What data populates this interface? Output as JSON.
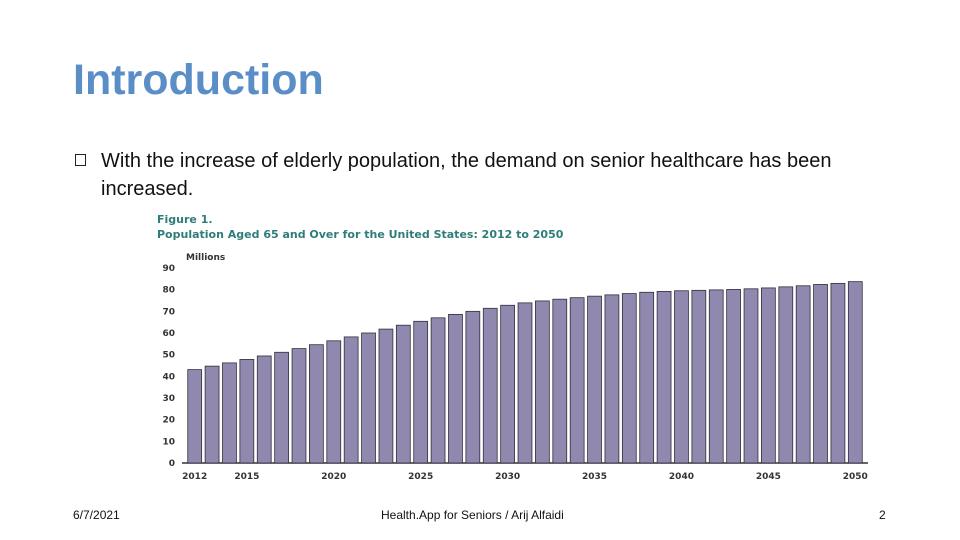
{
  "slide": {
    "title": "Introduction",
    "bullet": "With the increase of elderly population, the demand on senior healthcare has been increased."
  },
  "footer": {
    "date": "6/7/2021",
    "center": "Health.App for Seniors / Arij Alfaidi",
    "page": "2"
  },
  "colors": {
    "title": "#5b8ec7",
    "bar": "#9188b0",
    "bar_stroke": "#2f2f3a",
    "figure_text": "#2e7d78"
  },
  "chart_data": {
    "type": "bar",
    "figure_label": "Figure 1.",
    "title": "Population Aged 65 and Over for the United States: 2012 to 2050",
    "unit_label": "Millions",
    "xlabel": "",
    "ylabel": "",
    "ylim": [
      0,
      90
    ],
    "yticks": [
      0,
      10,
      20,
      30,
      40,
      50,
      60,
      70,
      80,
      90
    ],
    "xtick_labels": [
      "2012",
      "2015",
      "2020",
      "2025",
      "2030",
      "2035",
      "2040",
      "2045",
      "2050"
    ],
    "categories": [
      "2012",
      "2013",
      "2014",
      "2015",
      "2016",
      "2017",
      "2018",
      "2019",
      "2020",
      "2021",
      "2022",
      "2023",
      "2024",
      "2025",
      "2026",
      "2027",
      "2028",
      "2029",
      "2030",
      "2031",
      "2032",
      "2033",
      "2034",
      "2035",
      "2036",
      "2037",
      "2038",
      "2039",
      "2040",
      "2041",
      "2042",
      "2043",
      "2044",
      "2045",
      "2046",
      "2047",
      "2048",
      "2049",
      "2050"
    ],
    "values": [
      43.1,
      44.7,
      46.2,
      47.8,
      49.4,
      51.1,
      52.8,
      54.6,
      56.4,
      58.2,
      60.0,
      61.8,
      63.6,
      65.4,
      67.0,
      68.6,
      70.0,
      71.4,
      72.8,
      73.9,
      74.8,
      75.6,
      76.3,
      77.0,
      77.6,
      78.2,
      78.8,
      79.2,
      79.5,
      79.7,
      79.9,
      80.1,
      80.4,
      80.8,
      81.3,
      81.8,
      82.4,
      82.9,
      83.7
    ],
    "grid": false,
    "legend": "none"
  }
}
